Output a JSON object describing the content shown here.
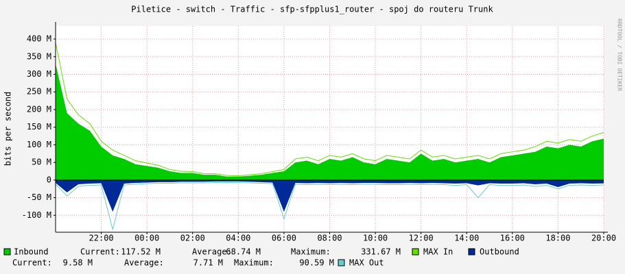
{
  "chart_data": {
    "type": "area",
    "title": "Piletice - switch - Traffic - sfp-sfpplus1_router - spoj do routeru Trunk",
    "y_label": "bits per second",
    "watermark": "RRDTOOL / TOBI OETIKER",
    "categories": [
      null,
      null,
      null,
      null,
      "22:00",
      null,
      null,
      null,
      "00:00",
      null,
      null,
      null,
      "02:00",
      null,
      null,
      null,
      "04:00",
      null,
      null,
      null,
      "06:00",
      null,
      null,
      null,
      "08:00",
      null,
      null,
      null,
      "10:00",
      null,
      null,
      null,
      "12:00",
      null,
      null,
      null,
      "14:00",
      null,
      null,
      null,
      "16:00",
      null,
      null,
      null,
      "18:00",
      null,
      null,
      null,
      "20:00"
    ],
    "ylim": [
      -148,
      437
    ],
    "yticks": [
      {
        "value": -100,
        "label": "-100 M"
      },
      {
        "value": -50,
        "label": "-50 M"
      },
      0,
      {
        "value": 50,
        "label": "50 M"
      },
      {
        "value": 100,
        "label": "100 M"
      },
      {
        "value": 150,
        "label": "150 M"
      },
      {
        "value": 200,
        "label": "200 M"
      },
      {
        "value": 250,
        "label": "250 M"
      },
      {
        "value": 300,
        "label": "300 M"
      },
      {
        "value": 350,
        "label": "350 M"
      },
      {
        "value": 400,
        "label": "400 M"
      }
    ],
    "grid": true,
    "stat_labels": [
      "Current:",
      "Average:",
      "Maximum:"
    ],
    "series": [
      {
        "name": "Inbound",
        "color": "#00cc00",
        "style": "area",
        "stats": [
          "117.52 M",
          "68.74 M",
          "331.67 M"
        ],
        "values": [
          330,
          190,
          160,
          140,
          95,
          70,
          60,
          45,
          40,
          35,
          25,
          20,
          20,
          15,
          15,
          10,
          10,
          12,
          15,
          20,
          25,
          50,
          55,
          45,
          60,
          55,
          65,
          50,
          45,
          60,
          55,
          50,
          75,
          55,
          60,
          50,
          55,
          60,
          50,
          65,
          70,
          75,
          80,
          95,
          90,
          100,
          95,
          110,
          117.52
        ]
      },
      {
        "name": "MAX In",
        "color": "#66dd00",
        "style": "line",
        "values": [
          390,
          230,
          185,
          160,
          110,
          85,
          70,
          55,
          48,
          42,
          30,
          25,
          24,
          18,
          18,
          13,
          12,
          15,
          18,
          24,
          30,
          60,
          65,
          55,
          70,
          65,
          75,
          60,
          55,
          70,
          65,
          60,
          85,
          65,
          70,
          60,
          65,
          70,
          60,
          75,
          80,
          85,
          95,
          110,
          105,
          115,
          110,
          125,
          135
        ]
      },
      {
        "name": "Outbound",
        "color": "#002a97",
        "style": "area",
        "stats": [
          "9.58 M",
          "7.71 M",
          "90.59 M"
        ],
        "values": [
          -8,
          -35,
          -12,
          -10,
          -9,
          -90,
          -10,
          -8,
          -7,
          -6,
          -6,
          -5,
          -5,
          -5,
          -4,
          -4,
          -4,
          -5,
          -6,
          -7,
          -90,
          -8,
          -9,
          -8,
          -9,
          -8,
          -9,
          -8,
          -8,
          -9,
          -9,
          -8,
          -9,
          -8,
          -9,
          -10,
          -9,
          -15,
          -9,
          -10,
          -10,
          -9,
          -12,
          -10,
          -20,
          -10,
          -9,
          -10,
          -9.58
        ]
      },
      {
        "name": "MAX Out",
        "color": "#66cccc",
        "style": "line",
        "values": [
          -12,
          -45,
          -18,
          -15,
          -14,
          -140,
          -14,
          -12,
          -10,
          -9,
          -9,
          -8,
          -8,
          -8,
          -7,
          -7,
          -7,
          -8,
          -9,
          -10,
          -110,
          -12,
          -13,
          -12,
          -13,
          -12,
          -13,
          -12,
          -12,
          -13,
          -13,
          -12,
          -13,
          -12,
          -13,
          -15,
          -13,
          -50,
          -13,
          -15,
          -15,
          -14,
          -18,
          -15,
          -25,
          -15,
          -14,
          -15,
          -14
        ]
      }
    ]
  }
}
